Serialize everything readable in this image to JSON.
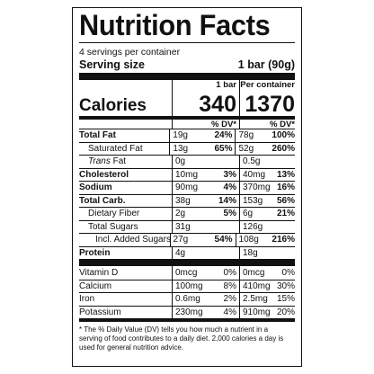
{
  "title": "Nutrition Facts",
  "servings": "4 servings per container",
  "serving_size": {
    "label": "Serving size",
    "value": "1 bar (90g)"
  },
  "columns": {
    "col1": "1 bar",
    "col2": "Per container"
  },
  "calories": {
    "label": "Calories",
    "col1": "340",
    "col2": "1370"
  },
  "dv_header": "% DV*",
  "nutrients": [
    {
      "name": "Total Fat",
      "amt1": "19g",
      "dv1": "24%",
      "amt2": "78g",
      "dv2": "100%",
      "bold": true,
      "indent": 0
    },
    {
      "name": "Saturated Fat",
      "amt1": "13g",
      "dv1": "65%",
      "amt2": "52g",
      "dv2": "260%",
      "bold": false,
      "indent": 1
    },
    {
      "name": "Trans Fat",
      "amt1": "0g",
      "dv1": "",
      "amt2": "0.5g",
      "dv2": "",
      "bold": false,
      "indent": 1,
      "italic_prefix": "Trans"
    },
    {
      "name": "Cholesterol",
      "amt1": "10mg",
      "dv1": "3%",
      "amt2": "40mg",
      "dv2": "13%",
      "bold": true,
      "indent": 0
    },
    {
      "name": "Sodium",
      "amt1": "90mg",
      "dv1": "4%",
      "amt2": "370mg",
      "dv2": "16%",
      "bold": true,
      "indent": 0
    },
    {
      "name": "Total Carb.",
      "amt1": "38g",
      "dv1": "14%",
      "amt2": "153g",
      "dv2": "56%",
      "bold": true,
      "indent": 0
    },
    {
      "name": "Dietary Fiber",
      "amt1": "2g",
      "dv1": "5%",
      "amt2": "6g",
      "dv2": "21%",
      "bold": false,
      "indent": 1
    },
    {
      "name": "Total Sugars",
      "amt1": "31g",
      "dv1": "",
      "amt2": "126g",
      "dv2": "",
      "bold": false,
      "indent": 1
    },
    {
      "name": "Incl. Added Sugars",
      "amt1": "27g",
      "dv1": "54%",
      "amt2": "108g",
      "dv2": "216%",
      "bold": false,
      "indent": 2
    },
    {
      "name": "Protein",
      "amt1": "4g",
      "dv1": "",
      "amt2": "18g",
      "dv2": "",
      "bold": true,
      "indent": 0
    }
  ],
  "vitamins": [
    {
      "name": "Vitamin D",
      "amt1": "0mcg",
      "dv1": "0%",
      "amt2": "0mcg",
      "dv2": "0%"
    },
    {
      "name": "Calcium",
      "amt1": "100mg",
      "dv1": "8%",
      "amt2": "410mg",
      "dv2": "30%"
    },
    {
      "name": "Iron",
      "amt1": "0.6mg",
      "dv1": "2%",
      "amt2": "2.5mg",
      "dv2": "15%"
    },
    {
      "name": "Potassium",
      "amt1": "230mg",
      "dv1": "4%",
      "amt2": "910mg",
      "dv2": "20%"
    }
  ],
  "footnote": "* The % Daily Value (DV) tells you how much a nutrient in a serving of food contributes to a daily diet. 2,000 calories a day is used for general nutrition advice."
}
